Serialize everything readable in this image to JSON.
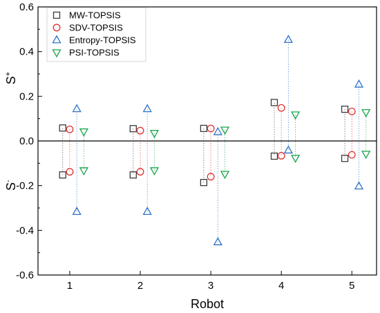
{
  "chart_data": {
    "type": "scatter",
    "xlabel": "Robot",
    "ylabel_top": {
      "base": "S",
      "sup": "+"
    },
    "ylabel_bottom": {
      "base": "S",
      "sup": "-"
    },
    "categories": [
      "1",
      "2",
      "3",
      "4",
      "5"
    ],
    "xlim": [
      0.55,
      5.35
    ],
    "ylim": [
      -0.6,
      0.6
    ],
    "yticks": [
      "-0.6",
      "-0.4",
      "-0.2",
      "0.0",
      "0.2",
      "0.4",
      "0.6"
    ],
    "zero_line": true,
    "grid": false,
    "legend_position": "top-left",
    "series": [
      {
        "name": "MW-TOPSIS",
        "marker": "square",
        "color": "#3a3a3a",
        "x": [
          0.9,
          1.9,
          2.9,
          3.9,
          4.9
        ],
        "s_plus": [
          0.058,
          0.055,
          0.056,
          0.172,
          0.142
        ],
        "s_minus": [
          -0.152,
          -0.152,
          -0.186,
          -0.068,
          -0.078
        ]
      },
      {
        "name": "SDV-TOPSIS",
        "marker": "circle",
        "color": "#e03030",
        "x": [
          1.0,
          2.0,
          3.0,
          4.0,
          5.0
        ],
        "s_plus": [
          0.052,
          0.046,
          0.056,
          0.148,
          0.132
        ],
        "s_minus": [
          -0.138,
          -0.138,
          -0.16,
          -0.066,
          -0.062
        ]
      },
      {
        "name": "Entropy-TOPSIS",
        "marker": "triangle-up",
        "color": "#2a72c8",
        "x": [
          1.1,
          2.1,
          3.1,
          4.1,
          5.1
        ],
        "s_plus": [
          0.143,
          0.143,
          0.04,
          0.453,
          0.253
        ],
        "s_minus": [
          -0.317,
          -0.317,
          -0.453,
          -0.042,
          -0.203
        ]
      },
      {
        "name": "PSI-TOPSIS",
        "marker": "triangle-down",
        "color": "#17a34a",
        "x": [
          1.2,
          2.2,
          3.2,
          4.2,
          5.2
        ],
        "s_plus": [
          0.042,
          0.035,
          0.05,
          0.118,
          0.128
        ],
        "s_minus": [
          -0.132,
          -0.132,
          -0.148,
          -0.076,
          -0.058
        ]
      }
    ]
  }
}
